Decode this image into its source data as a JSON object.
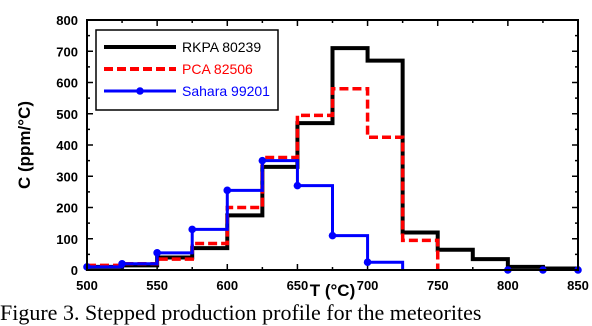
{
  "chart_data": {
    "type": "line",
    "step": true,
    "xlabel": "T (°C)",
    "ylabel": "C (ppm/°C)",
    "xlim": [
      500,
      850
    ],
    "ylim": [
      0,
      800
    ],
    "xticks": [
      "500",
      "550",
      "600",
      "650",
      "700",
      "750",
      "800",
      "850"
    ],
    "yticks": [
      "0",
      "100",
      "200",
      "300",
      "400",
      "500",
      "600",
      "700",
      "800"
    ],
    "legend_position": "top-left",
    "series": [
      {
        "name": "RKPA 80239",
        "color": "#000000",
        "style": "solid",
        "markers": false,
        "bin_edges": [
          500,
          525,
          550,
          575,
          600,
          625,
          650,
          675,
          700,
          725,
          750,
          775,
          800,
          825,
          850
        ],
        "values": [
          10,
          15,
          40,
          70,
          175,
          330,
          470,
          710,
          670,
          120,
          65,
          35,
          10,
          5
        ]
      },
      {
        "name": "PCA 82506",
        "color": "#ff0000",
        "style": "dashed",
        "markers": false,
        "bin_edges": [
          500,
          525,
          550,
          575,
          600,
          625,
          650,
          675,
          700,
          725,
          750
        ],
        "values": [
          15,
          20,
          35,
          85,
          200,
          360,
          495,
          580,
          425,
          95
        ]
      },
      {
        "name": "Sahara 99201",
        "color": "#0000ff",
        "style": "solid",
        "markers": true,
        "bin_edges": [
          500,
          525,
          550,
          575,
          600,
          625,
          650,
          675,
          700,
          725
        ],
        "values": [
          10,
          20,
          55,
          130,
          255,
          350,
          270,
          110,
          25
        ]
      }
    ],
    "end_markers": [
      800,
      825,
      850
    ]
  },
  "caption": "Figure 3. Stepped production profile for the meteorites"
}
